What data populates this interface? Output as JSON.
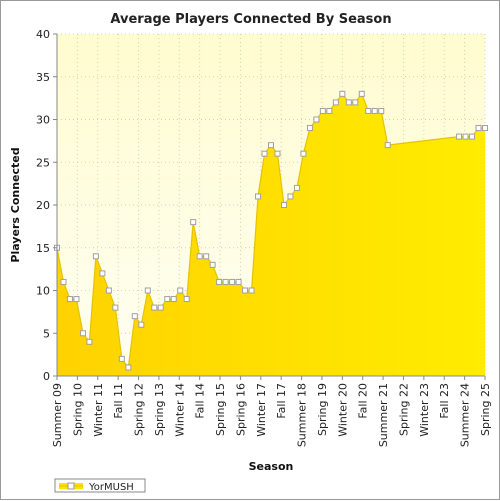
{
  "chart_data": {
    "type": "area",
    "title": "Average Players Connected By Season",
    "xlabel": "Season",
    "ylabel": "Players Connected",
    "ylim": [
      0,
      40
    ],
    "yticks": [
      0,
      5,
      10,
      15,
      20,
      25,
      30,
      35,
      40
    ],
    "grid": true,
    "legend_position": "bottom-left",
    "tick_labels": [
      "Summer 09",
      "Spring 10",
      "Winter 11",
      "Fall 11",
      "Spring 12",
      "Spring 13",
      "Winter 14",
      "Fall 14",
      "Spring 15",
      "Spring 16",
      "Winter 17",
      "Fall 17",
      "Summer 18",
      "Spring 19",
      "Winter 20",
      "Fall 20",
      "Summer 21",
      "Spring 22",
      "Winter 23",
      "Fall 23",
      "Summer 24",
      "Spring 25"
    ],
    "series": [
      {
        "name": "YorMUSH",
        "color": "#FFE100",
        "values": [
          15,
          11,
          9,
          9,
          5,
          4,
          14,
          12,
          10,
          8,
          2,
          1,
          7,
          6,
          10,
          8,
          8,
          9,
          9,
          10,
          9,
          18,
          14,
          14,
          13,
          11,
          11,
          11,
          11,
          10,
          10,
          21,
          26,
          27,
          26,
          20,
          21,
          22,
          26,
          29,
          30,
          31,
          31,
          32,
          33,
          32,
          32,
          33,
          31,
          31,
          31,
          27,
          null,
          null,
          null,
          null,
          null,
          null,
          null,
          null,
          null,
          null,
          28,
          28,
          28,
          29,
          29
        ]
      }
    ]
  }
}
